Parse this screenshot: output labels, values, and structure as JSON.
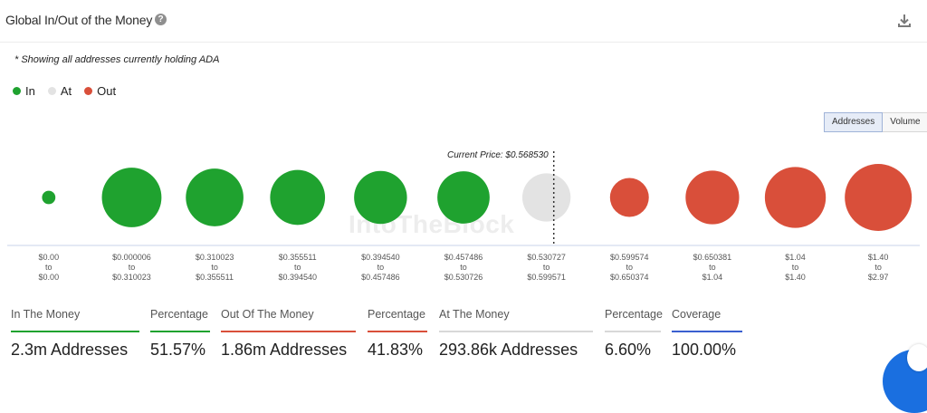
{
  "header": {
    "title": "Global In/Out of the Money",
    "help_icon": "question-circle-icon",
    "download_icon": "download-icon"
  },
  "note": "* Showing all addresses currently holding ADA",
  "legend": [
    {
      "label": "In",
      "color": "#1fa22f"
    },
    {
      "label": "At",
      "color": "#e3e3e3"
    },
    {
      "label": "Out",
      "color": "#d94f3a"
    }
  ],
  "toggle": {
    "addresses": "Addresses",
    "volume": "Volume",
    "active": "Addresses"
  },
  "watermark": "IntoTheBlock",
  "chart_data": {
    "type": "bubble",
    "current_price_label": "Current Price: $0.568530",
    "current_price_between": [
      "$0.530727 to $0.599571"
    ],
    "categories": [
      {
        "from": "$0.00",
        "to": "$0.00",
        "status": "In",
        "relative_size": 0.2
      },
      {
        "from": "$0.000006",
        "to": "$0.310023",
        "status": "In",
        "relative_size": 0.89
      },
      {
        "from": "$0.310023",
        "to": "$0.355511",
        "status": "In",
        "relative_size": 0.86
      },
      {
        "from": "$0.355511",
        "to": "$0.394540",
        "status": "In",
        "relative_size": 0.82
      },
      {
        "from": "$0.394540",
        "to": "$0.457486",
        "status": "In",
        "relative_size": 0.79
      },
      {
        "from": "$0.457486",
        "to": "$0.530726",
        "status": "In",
        "relative_size": 0.78
      },
      {
        "from": "$0.530727",
        "to": "$0.599571",
        "status": "At",
        "relative_size": 0.72
      },
      {
        "from": "$0.599574",
        "to": "$0.650374",
        "status": "Out",
        "relative_size": 0.58
      },
      {
        "from": "$0.650381",
        "to": "$1.04",
        "status": "Out",
        "relative_size": 0.8
      },
      {
        "from": "$1.04",
        "to": "$1.40",
        "status": "Out",
        "relative_size": 0.91
      },
      {
        "from": "$1.40",
        "to": "$2.97",
        "status": "Out",
        "relative_size": 1.0
      }
    ],
    "to_word": "to"
  },
  "stats": [
    {
      "label": "In The Money",
      "value": "2.3m Addresses",
      "color": "#1fa22f"
    },
    {
      "label": "Percentage",
      "value": "51.57%",
      "color": "#1fa22f"
    },
    {
      "label": "Out Of The Money",
      "value": "1.86m Addresses",
      "color": "#d94f3a"
    },
    {
      "label": "Percentage",
      "value": "41.83%",
      "color": "#d94f3a"
    },
    {
      "label": "At The Money",
      "value": "293.86k Addresses",
      "color": "#d8d8d8"
    },
    {
      "label": "Percentage",
      "value": "6.60%",
      "color": "#d8d8d8"
    },
    {
      "label": "Coverage",
      "value": "100.00%",
      "color": "#3a5fcf"
    }
  ]
}
